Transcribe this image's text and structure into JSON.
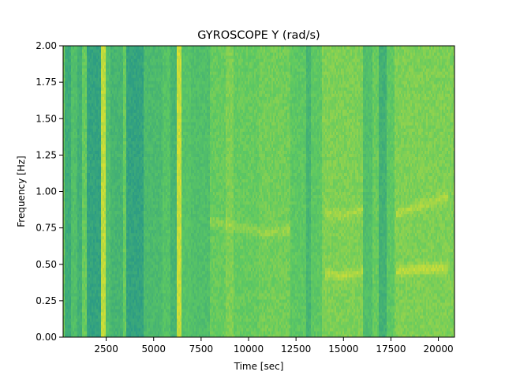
{
  "chart_data": {
    "type": "heatmap",
    "title": "GYROSCOPE Y (rad/s)",
    "xlabel": "Time [sec]",
    "ylabel": "Frequency [Hz]",
    "xlim": [
      230,
      20850
    ],
    "ylim": [
      0,
      2.0
    ],
    "x_ticks": [
      2500,
      5000,
      7500,
      10000,
      12500,
      15000,
      17500,
      20000
    ],
    "x_tick_labels": [
      "2500",
      "5000",
      "7500",
      "10000",
      "12500",
      "15000",
      "17500",
      "20000"
    ],
    "y_ticks": [
      0.0,
      0.25,
      0.5,
      0.75,
      1.0,
      1.25,
      1.5,
      1.75,
      2.0
    ],
    "y_tick_labels": [
      "0.00",
      "0.25",
      "0.50",
      "0.75",
      "1.00",
      "1.25",
      "1.50",
      "1.75",
      "2.00"
    ],
    "colormap": "viridis",
    "grid": false,
    "column_bands": [
      {
        "x0": 230,
        "x1": 350,
        "level": 0.78
      },
      {
        "x0": 350,
        "x1": 650,
        "level": 0.62
      },
      {
        "x0": 650,
        "x1": 1000,
        "level": 0.7
      },
      {
        "x0": 1000,
        "x1": 1250,
        "level": 0.64
      },
      {
        "x0": 1250,
        "x1": 1500,
        "level": 0.76
      },
      {
        "x0": 1500,
        "x1": 2200,
        "level": 0.58
      },
      {
        "x0": 2200,
        "x1": 2500,
        "level": 0.9
      },
      {
        "x0": 2500,
        "x1": 2750,
        "level": 0.7
      },
      {
        "x0": 2750,
        "x1": 3400,
        "level": 0.66
      },
      {
        "x0": 3400,
        "x1": 3550,
        "level": 0.76
      },
      {
        "x0": 3550,
        "x1": 4500,
        "level": 0.58
      },
      {
        "x0": 4500,
        "x1": 5500,
        "level": 0.68
      },
      {
        "x0": 5500,
        "x1": 5900,
        "level": 0.72
      },
      {
        "x0": 5900,
        "x1": 6200,
        "level": 0.66
      },
      {
        "x0": 6200,
        "x1": 6450,
        "level": 0.92
      },
      {
        "x0": 6450,
        "x1": 7000,
        "level": 0.72
      },
      {
        "x0": 7000,
        "x1": 8000,
        "level": 0.7
      },
      {
        "x0": 8000,
        "x1": 8800,
        "level": 0.76
      },
      {
        "x0": 8800,
        "x1": 9200,
        "level": 0.8
      },
      {
        "x0": 9200,
        "x1": 10500,
        "level": 0.76
      },
      {
        "x0": 10500,
        "x1": 12200,
        "level": 0.78
      },
      {
        "x0": 12200,
        "x1": 13000,
        "level": 0.74
      },
      {
        "x0": 13000,
        "x1": 13300,
        "level": 0.66
      },
      {
        "x0": 13300,
        "x1": 13900,
        "level": 0.74
      },
      {
        "x0": 13900,
        "x1": 16000,
        "level": 0.8
      },
      {
        "x0": 16000,
        "x1": 16500,
        "level": 0.7
      },
      {
        "x0": 16500,
        "x1": 16900,
        "level": 0.76
      },
      {
        "x0": 16900,
        "x1": 17300,
        "level": 0.64
      },
      {
        "x0": 17300,
        "x1": 17700,
        "level": 0.74
      },
      {
        "x0": 17700,
        "x1": 20850,
        "level": 0.8
      }
    ],
    "ridges": [
      {
        "x": [
          8000,
          9500,
          11000,
          12200
        ],
        "y": [
          0.8,
          0.76,
          0.72,
          0.74
        ],
        "strength": 0.06
      },
      {
        "x": [
          14000,
          15000,
          16000
        ],
        "y": [
          0.44,
          0.42,
          0.45
        ],
        "strength": 0.08
      },
      {
        "x": [
          14000,
          15000,
          16000
        ],
        "y": [
          0.86,
          0.84,
          0.88
        ],
        "strength": 0.06
      },
      {
        "x": [
          17800,
          19000,
          20500
        ],
        "y": [
          0.45,
          0.47,
          0.48
        ],
        "strength": 0.1
      },
      {
        "x": [
          17800,
          19000,
          20500
        ],
        "y": [
          0.85,
          0.9,
          0.97
        ],
        "strength": 0.07
      }
    ]
  }
}
